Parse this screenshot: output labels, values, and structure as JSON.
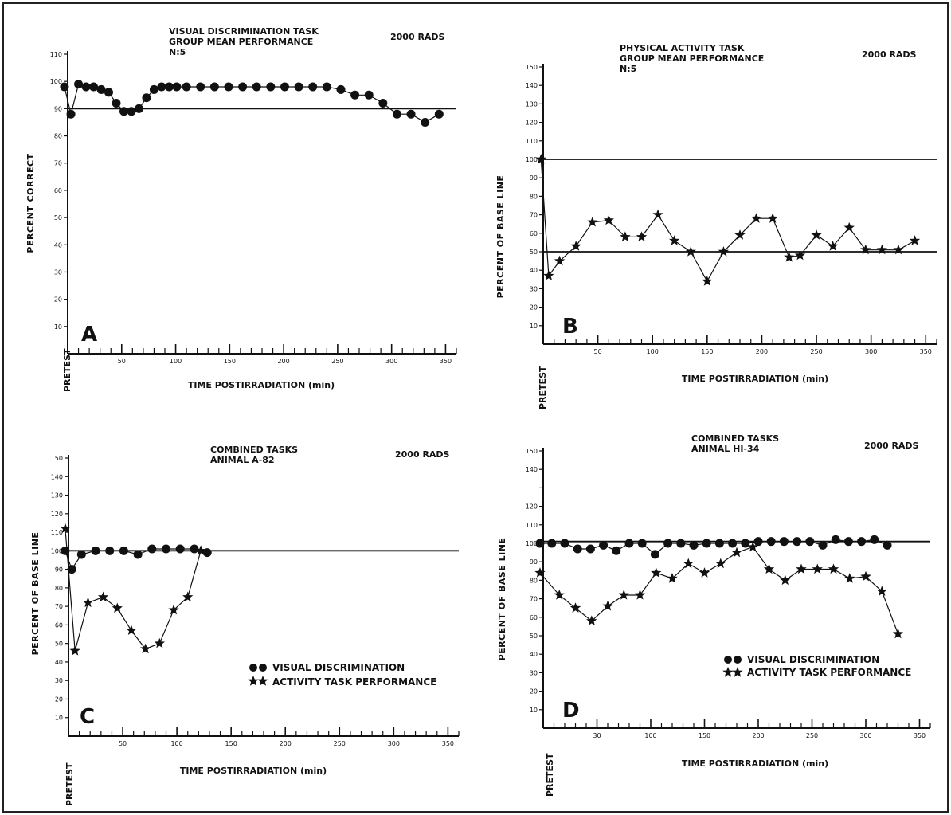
{
  "chart_data": [
    {
      "type": "line",
      "panel": "A",
      "title_lines": [
        "VISUAL DISCRIMINATION TASK",
        "GROUP MEAN PERFORMANCE",
        "N:5"
      ],
      "rads": "2000 RADS",
      "ylabel": "PERCENT CORRECT",
      "xlabel": "TIME POSTIRRADIATION (min)",
      "pretest_label": "PRETEST",
      "ylim": [
        0,
        110
      ],
      "yticks": [
        10,
        20,
        30,
        40,
        50,
        60,
        70,
        80,
        90,
        100,
        110
      ],
      "xlim": [
        -5,
        360
      ],
      "xticks": [
        50,
        100,
        150,
        200,
        250,
        300,
        350
      ],
      "reference_line": 90,
      "series": [
        {
          "marker": "circle",
          "x": [
            -3,
            3,
            10,
            17,
            24,
            31,
            38,
            45,
            52,
            59,
            66,
            73,
            80,
            87,
            94,
            101,
            110,
            123,
            136,
            149,
            162,
            175,
            188,
            201,
            214,
            227,
            240,
            253,
            266,
            279,
            292,
            305,
            318,
            331,
            344
          ],
          "y": [
            98,
            88,
            99,
            98,
            98,
            97,
            96,
            92,
            89,
            89,
            90,
            94,
            97,
            98,
            98,
            98,
            98,
            98,
            98,
            98,
            98,
            98,
            98,
            98,
            98,
            98,
            98,
            97,
            95,
            95,
            92,
            88,
            88,
            85,
            88
          ]
        }
      ]
    },
    {
      "type": "line",
      "panel": "B",
      "title_lines": [
        "PHYSICAL ACTIVITY TASK",
        "GROUP MEAN PERFORMANCE",
        "N:5"
      ],
      "rads": "2000 RADS",
      "ylabel": "PERCENT OF BASE LINE",
      "xlabel": "TIME POSTIRRADIATION (min)",
      "pretest_label": "PRETEST",
      "ylim": [
        0,
        150
      ],
      "yticks": [
        10,
        20,
        30,
        40,
        50,
        60,
        70,
        80,
        90,
        100,
        110,
        120,
        130,
        140,
        150
      ],
      "xlim": [
        -5,
        360
      ],
      "xticks": [
        50,
        100,
        150,
        200,
        250,
        300,
        350
      ],
      "reference_lines": [
        100,
        50
      ],
      "series": [
        {
          "marker": "star",
          "x": [
            -2,
            5,
            15,
            30,
            45,
            60,
            75,
            90,
            105,
            120,
            135,
            150,
            165,
            180,
            195,
            210,
            225,
            235,
            250,
            265,
            280,
            295,
            310,
            325,
            340
          ],
          "y": [
            100,
            37,
            45,
            53,
            66,
            67,
            58,
            58,
            70,
            56,
            50,
            34,
            50,
            59,
            68,
            68,
            47,
            48,
            59,
            53,
            63,
            51,
            51,
            51,
            56
          ]
        }
      ]
    },
    {
      "type": "line",
      "panel": "C",
      "title_lines": [
        "COMBINED TASKS",
        "ANIMAL A-82"
      ],
      "rads": "2000 RADS",
      "ylabel": "PERCENT OF BASE LINE",
      "xlabel": "TIME POSTIRRADIATION (min)",
      "pretest_label": "PRETEST",
      "ylim": [
        0,
        150
      ],
      "yticks": [
        10,
        20,
        30,
        40,
        50,
        60,
        70,
        80,
        90,
        100,
        110,
        120,
        130,
        140,
        150
      ],
      "xlim": [
        -5,
        360
      ],
      "xticks": [
        50,
        100,
        150,
        200,
        250,
        300,
        350
      ],
      "reference_line": 100,
      "legend": [
        "VISUAL DISCRIMINATION",
        "ACTIVITY TASK PERFORMANCE"
      ],
      "series": [
        {
          "name": "VISUAL DISCRIMINATION",
          "marker": "circle",
          "x": [
            -3,
            3,
            12,
            25,
            38,
            51,
            64,
            77,
            90,
            103,
            116,
            128
          ],
          "y": [
            100,
            90,
            98,
            100,
            100,
            100,
            98,
            101,
            101,
            101,
            101,
            99
          ]
        },
        {
          "name": "ACTIVITY TASK PERFORMANCE",
          "marker": "star",
          "x": [
            -3,
            6,
            18,
            32,
            45,
            58,
            71,
            84,
            97,
            110,
            122
          ],
          "y": [
            112,
            46,
            72,
            75,
            69,
            57,
            47,
            50,
            68,
            75,
            100
          ]
        }
      ]
    },
    {
      "type": "line",
      "panel": "D",
      "title_lines": [
        "COMBINED TASKS",
        "ANIMAL HI-34"
      ],
      "rads": "2000 RADS",
      "ylabel": "PERCENT OF BASE LINE",
      "xlabel": "TIME POSTIRRADIATION (min)",
      "pretest_label": "PRETEST",
      "ylim": [
        0,
        150
      ],
      "yticks": [
        10,
        20,
        30,
        40,
        50,
        60,
        70,
        80,
        90,
        100,
        110,
        120,
        130,
        140,
        150
      ],
      "ytick_labels": [
        "10",
        "20",
        "30",
        "40",
        "50",
        "60",
        "70",
        "80",
        "90",
        "100",
        "110",
        "120",
        "",
        "140",
        "150"
      ],
      "xlim": [
        -5,
        360
      ],
      "xticks": [
        30,
        100,
        150,
        200,
        250,
        300,
        350
      ],
      "reference_line": 101,
      "legend": [
        "VISUAL DISCRIMINATION",
        "ACTIVITY TASK PERFORMANCE"
      ],
      "series": [
        {
          "name": "VISUAL DISCRIMINATION",
          "marker": "circle",
          "x": [
            -3,
            8,
            20,
            32,
            44,
            56,
            68,
            80,
            92,
            104,
            116,
            128,
            140,
            152,
            164,
            176,
            188,
            200,
            212,
            224,
            236,
            248,
            260,
            272,
            284,
            296,
            308,
            320
          ],
          "y": [
            100,
            100,
            100,
            97,
            97,
            99,
            96,
            100,
            100,
            94,
            100,
            100,
            99,
            100,
            100,
            100,
            100,
            101,
            101,
            101,
            101,
            101,
            99,
            102,
            101,
            101,
            102,
            99
          ]
        },
        {
          "name": "ACTIVITY TASK PERFORMANCE",
          "marker": "star",
          "x": [
            -3,
            15,
            30,
            45,
            60,
            75,
            90,
            105,
            120,
            135,
            150,
            165,
            180,
            195,
            210,
            225,
            240,
            255,
            270,
            285,
            300,
            315,
            330
          ],
          "y": [
            84,
            72,
            65,
            58,
            66,
            72,
            72,
            84,
            81,
            89,
            84,
            89,
            95,
            98,
            86,
            80,
            86,
            86,
            86,
            81,
            82,
            74,
            51
          ]
        }
      ]
    }
  ]
}
